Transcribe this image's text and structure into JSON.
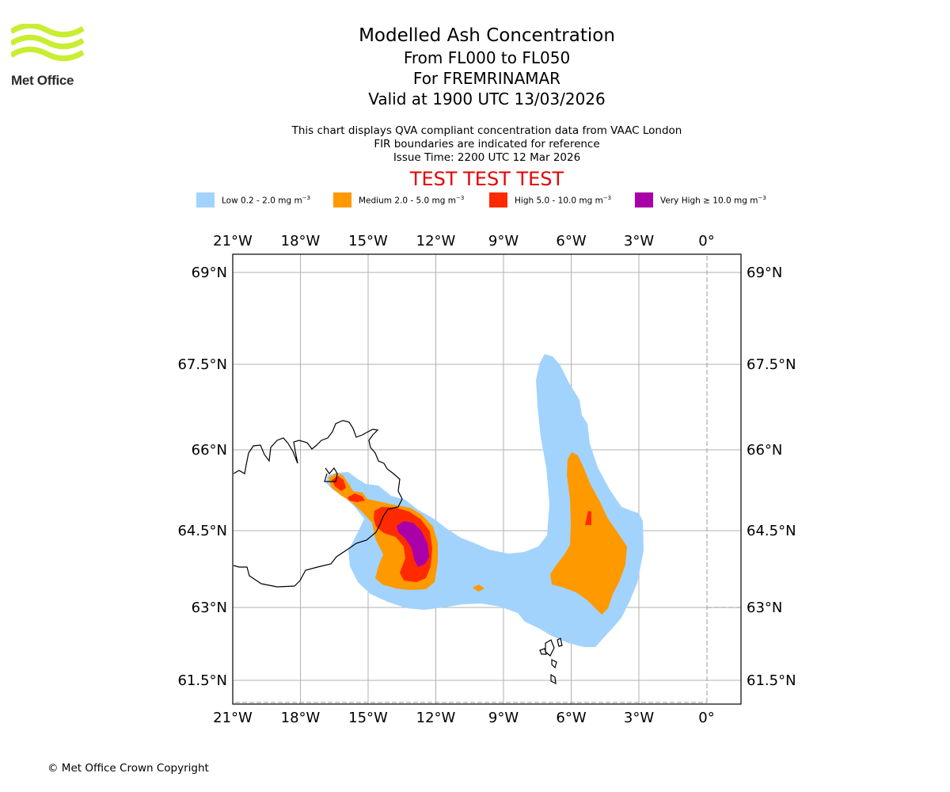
{
  "logo": {
    "name": "Met Office"
  },
  "title": {
    "line1": "Modelled Ash Concentration",
    "line2": "From FL000 to FL050",
    "line3": "For FREMRINAMAR",
    "line4": "Valid at 1900 UTC 13/03/2026"
  },
  "subtitle": {
    "line1": "This chart displays QVA compliant concentration data from VAAC London",
    "line2": "FIR boundaries are indicated for reference",
    "line3": "Issue Time: 2200 UTC 12 Mar 2026"
  },
  "test_banner": "TEST TEST TEST",
  "legend": [
    {
      "label": "Low 0.2 - 2.0 mg m",
      "unit_exp": "−3",
      "color": "#a2d3fc"
    },
    {
      "label": "Medium 2.0 - 5.0 mg m",
      "unit_exp": "−3",
      "color": "#ff9900"
    },
    {
      "label": "High 5.0 - 10.0 mg m",
      "unit_exp": "−3",
      "color": "#ff2a00"
    },
    {
      "label": "Very High  ≥  10.0 mg m",
      "unit_exp": "−3",
      "color": "#aa00aa"
    }
  ],
  "map": {
    "lon_ticks": [
      "21°W",
      "18°W",
      "15°W",
      "12°W",
      "9°W",
      "6°W",
      "3°W",
      "0°"
    ],
    "lat_ticks": [
      "69°N",
      "67.5°N",
      "66°N",
      "64.5°N",
      "63°N",
      "61.5°N"
    ],
    "lon_values": [
      -21,
      -18,
      -15,
      -12,
      -9,
      -6,
      -3,
      0
    ],
    "lat_values": [
      69,
      67.5,
      66,
      64.5,
      63,
      61.5
    ],
    "lon_range": [
      -21,
      1.5
    ],
    "lat_range": [
      61.1,
      69.3
    ],
    "grid_color": "#b0b0b0"
  },
  "copyright": "© Met Office Crown Copyright"
}
